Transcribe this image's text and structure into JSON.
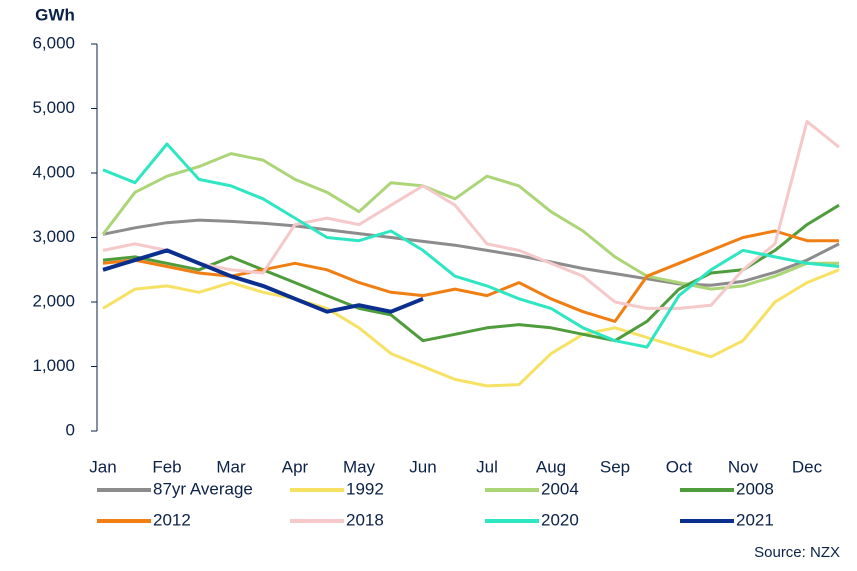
{
  "chart_data": {
    "type": "line",
    "y_label": "GWh",
    "source": "Source: NZX",
    "categories": [
      "Jan",
      null,
      "Feb",
      null,
      "Mar",
      null,
      "Apr",
      null,
      "May",
      null,
      "Jun",
      null,
      "Jul",
      null,
      "Aug",
      null,
      "Sep",
      null,
      "Oct",
      null,
      "Nov",
      null,
      "Dec",
      null
    ],
    "ylim": [
      0,
      6000
    ],
    "yticks": [
      0,
      {
        "value": 1000,
        "label": "1,000"
      },
      {
        "value": 2000,
        "label": "2,000"
      },
      {
        "value": 3000,
        "label": "3,000"
      },
      {
        "value": 4000,
        "label": "4,000"
      },
      {
        "value": 5000,
        "label": "5,000"
      },
      {
        "value": 6000,
        "label": "6,000"
      }
    ],
    "grid": false,
    "legend": "bottom",
    "series": [
      {
        "name": "87yr Average",
        "color": "#8c8c8c",
        "values": [
          3050,
          3150,
          3230,
          3270,
          3250,
          3220,
          3180,
          3120,
          3060,
          3000,
          2940,
          2880,
          2800,
          2720,
          2620,
          2520,
          2440,
          2360,
          2280,
          2260,
          2320,
          2460,
          2650,
          2900
        ]
      },
      {
        "name": "1992",
        "color": "#f7e163",
        "values": [
          1900,
          2200,
          2250,
          2150,
          2300,
          2150,
          2050,
          1900,
          1600,
          1200,
          1000,
          800,
          700,
          720,
          1200,
          1500,
          1600,
          1450,
          1300,
          1150,
          1400,
          2000,
          2300,
          2500
        ]
      },
      {
        "name": "2004",
        "color": "#acd578",
        "values": [
          3050,
          3700,
          3950,
          4100,
          4300,
          4200,
          3900,
          3700,
          3400,
          3850,
          3800,
          3600,
          3950,
          3800,
          3400,
          3100,
          2700,
          2400,
          2300,
          2200,
          2250,
          2400,
          2600,
          2600
        ]
      },
      {
        "name": "2008",
        "color": "#4f9c3c",
        "values": [
          2650,
          2700,
          2600,
          2500,
          2700,
          2500,
          2300,
          2100,
          1900,
          1800,
          1400,
          1500,
          1600,
          1650,
          1600,
          1500,
          1400,
          1700,
          2200,
          2450,
          2500,
          2800,
          3200,
          3500
        ]
      },
      {
        "name": "2012",
        "color": "#f07e12",
        "values": [
          2600,
          2650,
          2550,
          2450,
          2400,
          2500,
          2600,
          2500,
          2300,
          2150,
          2100,
          2200,
          2100,
          2300,
          2050,
          1850,
          1700,
          2400,
          2600,
          2800,
          3000,
          3100,
          2950,
          2950
        ]
      },
      {
        "name": "2018",
        "color": "#f5c8ca",
        "values": [
          2800,
          2900,
          2800,
          2600,
          2500,
          2450,
          3200,
          3300,
          3200,
          3500,
          3800,
          3500,
          2900,
          2800,
          2600,
          2400,
          2000,
          1900,
          1900,
          1950,
          2500,
          2900,
          4800,
          4400
        ]
      },
      {
        "name": "2020",
        "color": "#2ee6c2",
        "values": [
          4050,
          3850,
          4450,
          3900,
          3800,
          3600,
          3300,
          3000,
          2950,
          3100,
          2800,
          2400,
          2250,
          2050,
          1900,
          1600,
          1400,
          1300,
          2100,
          2500,
          2800,
          2700,
          2600,
          2550
        ]
      },
      {
        "name": "2021",
        "color": "#0b2f8e",
        "values": [
          2500,
          2650,
          2800,
          2600,
          2400,
          2250,
          2050,
          1850,
          1950,
          1850,
          2050,
          null,
          null,
          null,
          null,
          null,
          null,
          null,
          null,
          null,
          null,
          null,
          null,
          null
        ]
      }
    ]
  }
}
